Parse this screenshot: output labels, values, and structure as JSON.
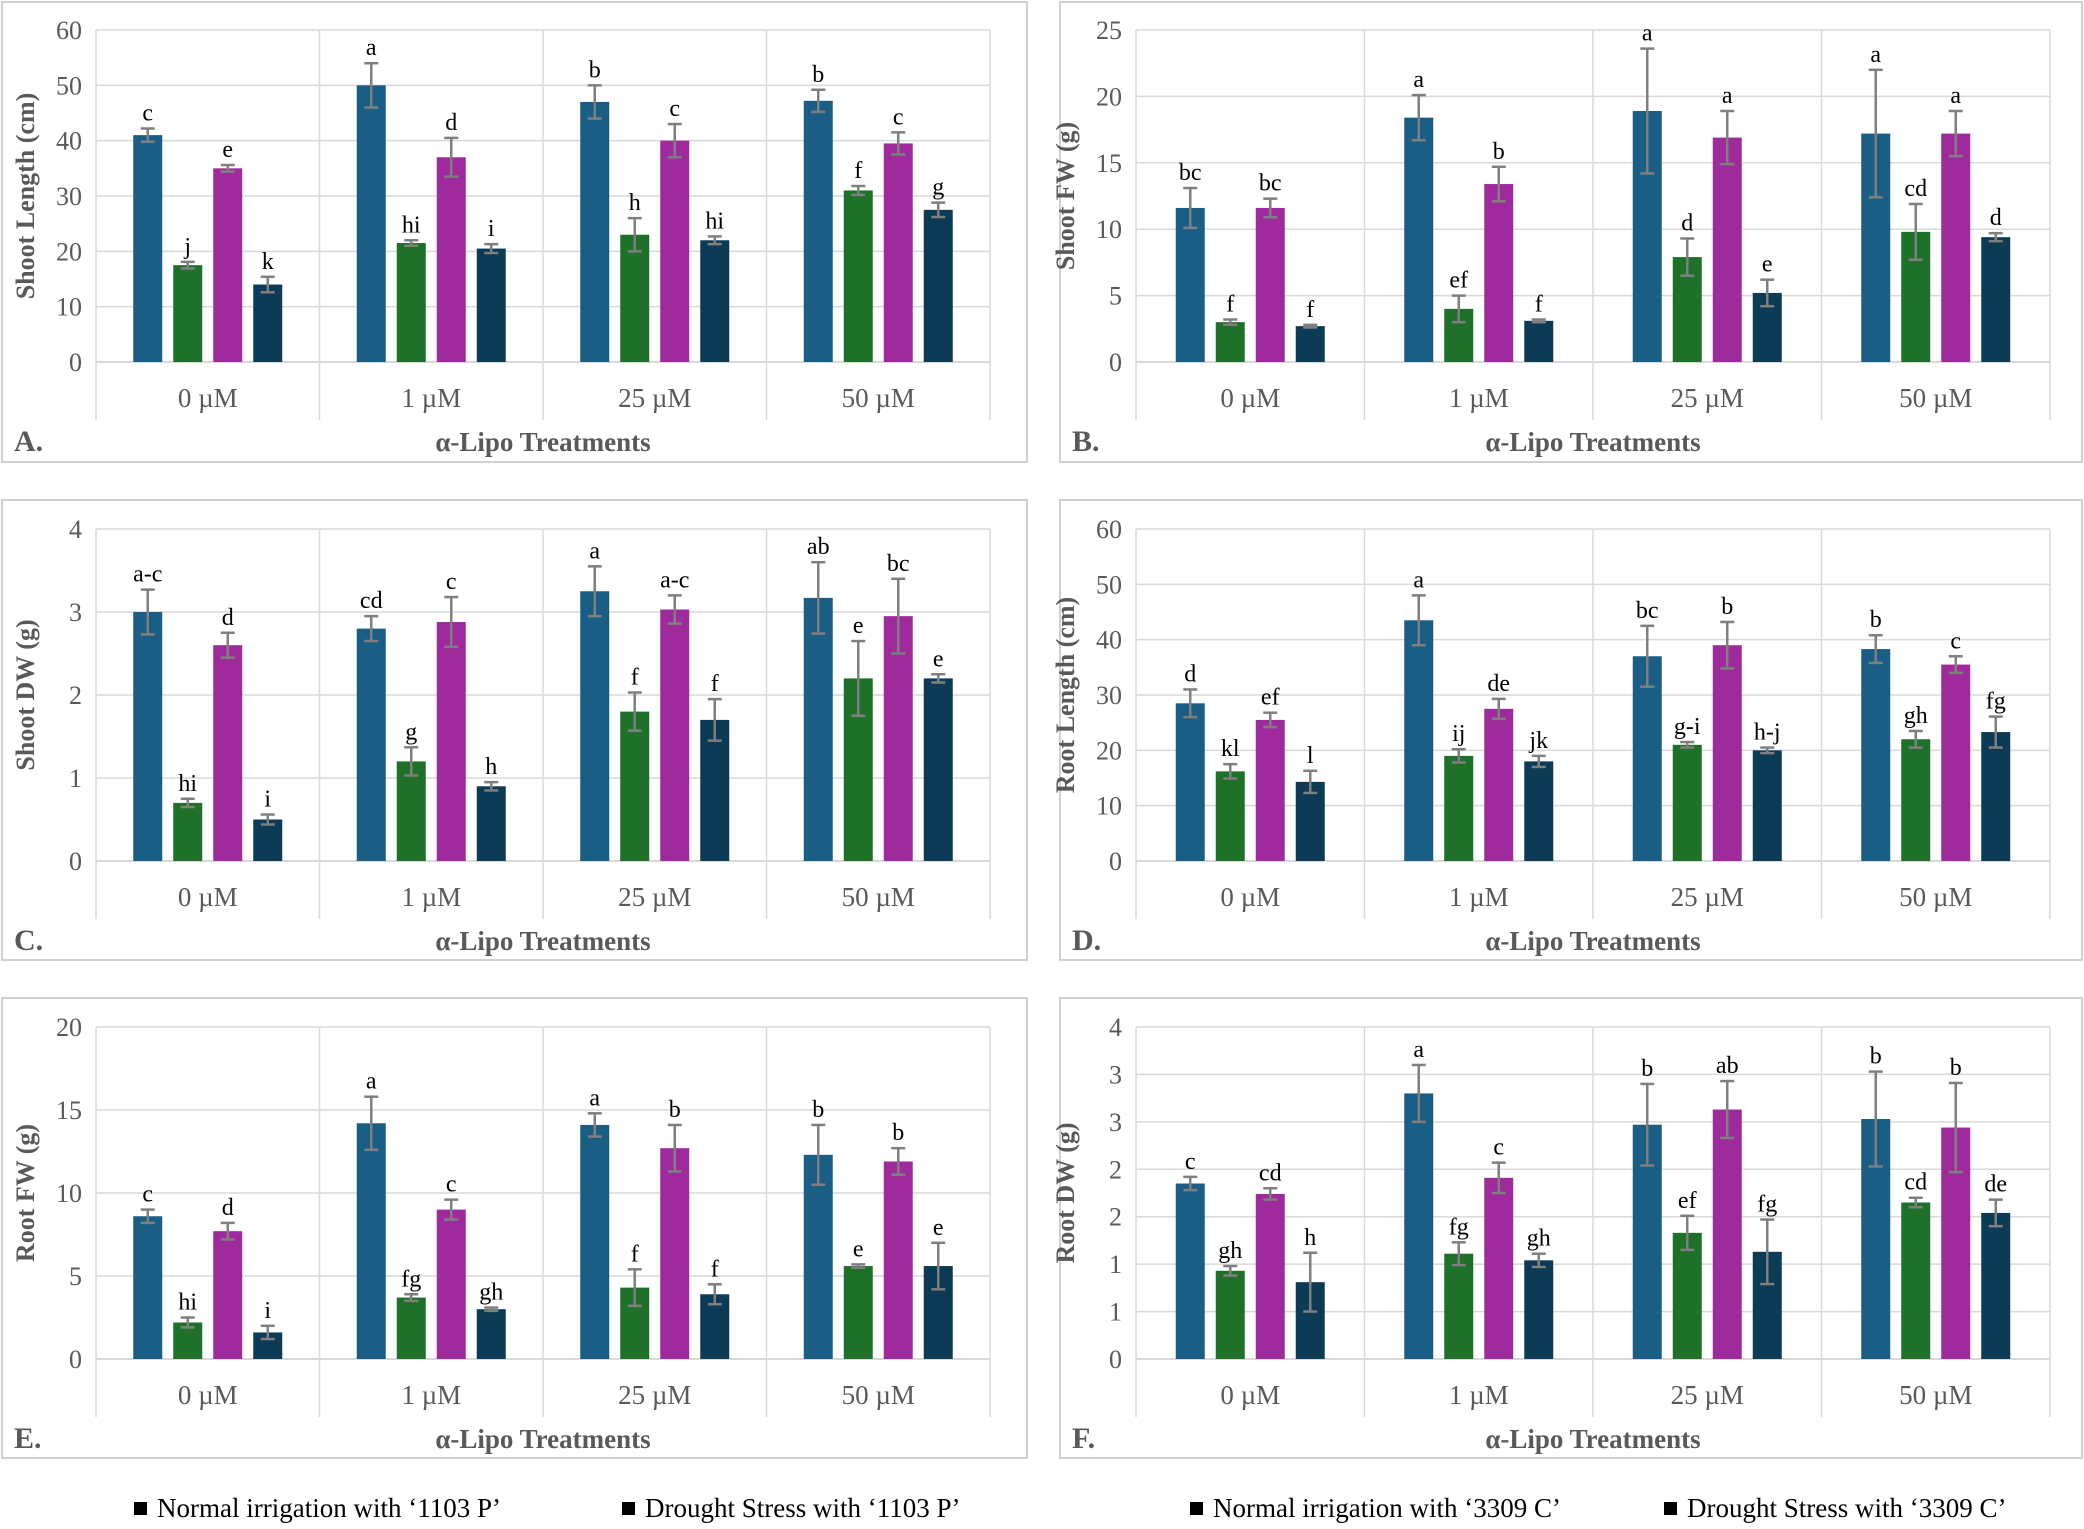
{
  "colors": {
    "normal_1103P": "#1a5e85",
    "drought_1103P": "#1f7029",
    "normal_3309C": "#9f2a9c",
    "drought_3309C": "#0d3a55",
    "error_bar": "#7f7f7f",
    "gridline": "#d9d9d9",
    "panel_border": "#d0d0d0",
    "text": "#595959"
  },
  "legend": {
    "items": [
      {
        "marker": "■",
        "label": "Normal irrigation with ‘1103 P’"
      },
      {
        "marker": "■",
        "label": "Drought Stress with ‘1103 P’"
      },
      {
        "marker": "■",
        "label": "Normal irrigation with ‘3309 C’"
      },
      {
        "marker": "■",
        "label": "Drought Stress with ‘3309 C’"
      }
    ]
  },
  "chart_data": [
    {
      "type": "bar",
      "panel_label": "A.",
      "xlabel": "α-Lipo Treatments",
      "ylabel": "Shoot Length (cm)",
      "categories": [
        "0 µM",
        "1 µM",
        "25 µM",
        "50 µM"
      ],
      "ylim": [
        0,
        60
      ],
      "yticks": [
        0,
        10,
        20,
        30,
        40,
        50,
        60
      ],
      "ytick_labels": [
        "0",
        "10",
        "20",
        "30",
        "40",
        "50",
        "60"
      ],
      "grid": true,
      "legend_position": "bottom",
      "series": [
        {
          "values": [
            41,
            50,
            47,
            47.2
          ],
          "errors": [
            1.2,
            4,
            3,
            2
          ],
          "letters": [
            "c",
            "a",
            "b",
            "b"
          ]
        },
        {
          "values": [
            17.5,
            21.5,
            23,
            31
          ],
          "errors": [
            0.6,
            0.5,
            3,
            0.8
          ],
          "letters": [
            "j",
            "hi",
            "h",
            "f"
          ]
        },
        {
          "values": [
            35,
            37,
            40,
            39.5
          ],
          "errors": [
            0.6,
            3.5,
            3,
            2
          ],
          "letters": [
            "e",
            "d",
            "c",
            "c"
          ]
        },
        {
          "values": [
            14,
            20.5,
            22,
            27.5
          ],
          "errors": [
            1.4,
            0.8,
            0.7,
            1.3
          ],
          "letters": [
            "k",
            "i",
            "hi",
            "g"
          ]
        }
      ]
    },
    {
      "type": "bar",
      "panel_label": "B.",
      "xlabel": "α-Lipo Treatments",
      "ylabel": "Shoot FW (g)",
      "categories": [
        "0 µM",
        "1 µM",
        "25 µM",
        "50 µM"
      ],
      "ylim": [
        0,
        25
      ],
      "yticks": [
        0,
        5,
        10,
        15,
        20,
        25
      ],
      "ytick_labels": [
        "0",
        "5",
        "10",
        "15",
        "20",
        "25"
      ],
      "grid": true,
      "legend_position": "bottom",
      "series": [
        {
          "values": [
            11.6,
            18.4,
            18.9,
            17.2
          ],
          "errors": [
            1.5,
            1.7,
            4.7,
            4.8
          ],
          "letters": [
            "bc",
            "a",
            "a",
            "a"
          ]
        },
        {
          "values": [
            3,
            4,
            7.9,
            9.8
          ],
          "errors": [
            0.2,
            1,
            1.4,
            2.1
          ],
          "letters": [
            "f",
            "ef",
            "d",
            "cd"
          ]
        },
        {
          "values": [
            11.6,
            13.4,
            16.9,
            17.2
          ],
          "errors": [
            0.7,
            1.3,
            2,
            1.7
          ],
          "letters": [
            "bc",
            "b",
            "a",
            "a"
          ]
        },
        {
          "values": [
            2.7,
            3.1,
            5.2,
            9.4
          ],
          "errors": [
            0.1,
            0.1,
            1,
            0.3
          ],
          "letters": [
            "f",
            "f",
            "e",
            "d"
          ]
        }
      ]
    },
    {
      "type": "bar",
      "panel_label": "C.",
      "xlabel": "α-Lipo Treatments",
      "ylabel": "Shoot DW (g)",
      "categories": [
        "0 µM",
        "1 µM",
        "25 µM",
        "50 µM"
      ],
      "ylim": [
        0,
        4
      ],
      "yticks": [
        0,
        1,
        2,
        3,
        4
      ],
      "ytick_labels": [
        "0",
        "1",
        "2",
        "3",
        "4"
      ],
      "grid": true,
      "legend_position": "bottom",
      "series": [
        {
          "values": [
            3,
            2.8,
            3.25,
            3.17
          ],
          "errors": [
            0.27,
            0.15,
            0.3,
            0.43
          ],
          "letters": [
            "a-c",
            "cd",
            "a",
            "ab"
          ]
        },
        {
          "values": [
            0.7,
            1.2,
            1.8,
            2.2
          ],
          "errors": [
            0.05,
            0.17,
            0.23,
            0.45
          ],
          "letters": [
            "hi",
            "g",
            "f",
            "e"
          ]
        },
        {
          "values": [
            2.6,
            2.88,
            3.03,
            2.95
          ],
          "errors": [
            0.15,
            0.3,
            0.17,
            0.45
          ],
          "letters": [
            "d",
            "c",
            "a-c",
            "bc"
          ]
        },
        {
          "values": [
            0.5,
            0.9,
            1.7,
            2.2
          ],
          "errors": [
            0.06,
            0.05,
            0.25,
            0.05
          ],
          "letters": [
            "i",
            "h",
            "f",
            "e"
          ]
        }
      ]
    },
    {
      "type": "bar",
      "panel_label": "D.",
      "xlabel": "α-Lipo Treatments",
      "ylabel": "Root Length (cm)",
      "categories": [
        "0 µM",
        "1 µM",
        "25 µM",
        "50 µM"
      ],
      "ylim": [
        0,
        60
      ],
      "yticks": [
        0,
        10,
        20,
        30,
        40,
        50,
        60
      ],
      "ytick_labels": [
        "0",
        "10",
        "20",
        "30",
        "40",
        "50",
        "60"
      ],
      "grid": true,
      "legend_position": "bottom",
      "series": [
        {
          "values": [
            28.5,
            43.5,
            37,
            38.3
          ],
          "errors": [
            2.5,
            4.5,
            5.5,
            2.5
          ],
          "letters": [
            "d",
            "a",
            "bc",
            "b"
          ]
        },
        {
          "values": [
            16.2,
            19,
            21,
            22
          ],
          "errors": [
            1.3,
            1.2,
            0.5,
            1.5
          ],
          "letters": [
            "kl",
            "ij",
            "g-i",
            "gh"
          ]
        },
        {
          "values": [
            25.5,
            27.5,
            39,
            35.5
          ],
          "errors": [
            1.3,
            1.8,
            4.2,
            1.5
          ],
          "letters": [
            "ef",
            "de",
            "b",
            "c"
          ]
        },
        {
          "values": [
            14.3,
            18,
            20,
            23.3
          ],
          "errors": [
            2,
            1,
            0.5,
            2.8
          ],
          "letters": [
            "l",
            "jk",
            "h-j",
            "fg"
          ]
        }
      ]
    },
    {
      "type": "bar",
      "panel_label": "E.",
      "xlabel": "α-Lipo Treatments",
      "ylabel": "Root FW (g)",
      "categories": [
        "0 µM",
        "1 µM",
        "25 µM",
        "50 µM"
      ],
      "ylim": [
        0,
        20
      ],
      "yticks": [
        0,
        5,
        10,
        15,
        20
      ],
      "ytick_labels": [
        "0",
        "5",
        "10",
        "15",
        "20"
      ],
      "grid": true,
      "legend_position": "bottom",
      "series": [
        {
          "values": [
            8.6,
            14.2,
            14.1,
            12.3
          ],
          "errors": [
            0.4,
            1.6,
            0.7,
            1.8
          ],
          "letters": [
            "c",
            "a",
            "a",
            "b"
          ]
        },
        {
          "values": [
            2.2,
            3.7,
            4.3,
            5.6
          ],
          "errors": [
            0.3,
            0.2,
            1.1,
            0.1
          ],
          "letters": [
            "hi",
            "fg",
            "f",
            "e"
          ]
        },
        {
          "values": [
            7.7,
            9,
            12.7,
            11.9
          ],
          "errors": [
            0.5,
            0.6,
            1.4,
            0.8
          ],
          "letters": [
            "d",
            "c",
            "b",
            "b"
          ]
        },
        {
          "values": [
            1.6,
            3,
            3.9,
            5.6
          ],
          "errors": [
            0.4,
            0.1,
            0.6,
            1.4
          ],
          "letters": [
            "i",
            "gh",
            "f",
            "e"
          ]
        }
      ]
    },
    {
      "type": "bar",
      "panel_label": "F.",
      "xlabel": "α-Lipo Treatments",
      "ylabel": "Root DW (g)",
      "categories": [
        "0 µM",
        "1 µM",
        "25 µM",
        "50 µM"
      ],
      "ylim": [
        0,
        3.5
      ],
      "yticks": [
        0,
        0.5,
        1,
        1.5,
        2,
        2.5,
        3,
        3.5
      ],
      "ytick_labels": [
        "0",
        "1",
        "1",
        "2",
        "2",
        "3",
        "3",
        "4"
      ],
      "grid": true,
      "legend_position": "bottom",
      "series": [
        {
          "values": [
            1.85,
            2.8,
            2.47,
            2.53
          ],
          "errors": [
            0.07,
            0.3,
            0.43,
            0.5
          ],
          "letters": [
            "c",
            "a",
            "b",
            "b"
          ]
        },
        {
          "values": [
            0.93,
            1.11,
            1.33,
            1.65
          ],
          "errors": [
            0.05,
            0.12,
            0.18,
            0.05
          ],
          "letters": [
            "gh",
            "fg",
            "ef",
            "cd"
          ]
        },
        {
          "values": [
            1.74,
            1.91,
            2.63,
            2.44
          ],
          "errors": [
            0.06,
            0.16,
            0.3,
            0.47
          ],
          "letters": [
            "cd",
            "c",
            "ab",
            "b"
          ]
        },
        {
          "values": [
            0.81,
            1.04,
            1.13,
            1.54
          ],
          "errors": [
            0.31,
            0.07,
            0.34,
            0.14
          ],
          "letters": [
            "h",
            "gh",
            "fg",
            "de"
          ]
        }
      ]
    }
  ]
}
